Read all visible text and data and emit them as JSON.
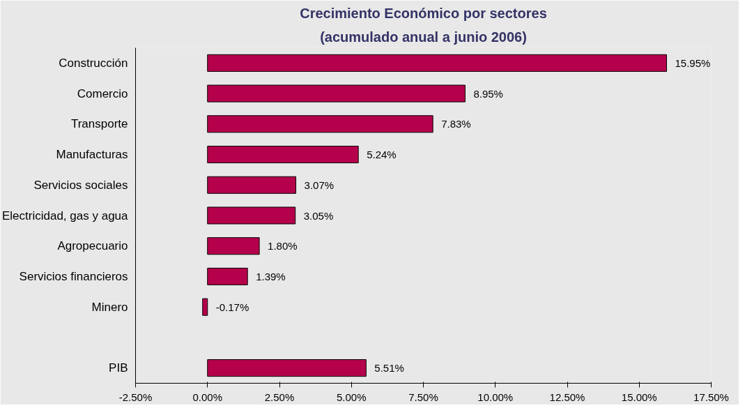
{
  "chart_data": {
    "type": "bar",
    "orientation": "horizontal",
    "title": "Crecimiento Económico por sectores",
    "subtitle": "(acumulado anual a junio 2006)",
    "categories": [
      "Construcción",
      "Comercio",
      "Transporte",
      "Manufacturas",
      "Servicios sociales",
      "Electricidad, gas y agua",
      "Agropecuario",
      "Servicios financieros",
      "Minero",
      null,
      "PIB"
    ],
    "values": [
      15.95,
      8.95,
      7.83,
      5.24,
      3.07,
      3.05,
      1.8,
      1.39,
      -0.17,
      null,
      5.51
    ],
    "value_labels": [
      "15.95%",
      "8.95%",
      "7.83%",
      "5.24%",
      "3.07%",
      "3.05%",
      "1.80%",
      "1.39%",
      "-0.17%",
      null,
      "5.51%"
    ],
    "color": "#b5004b",
    "xlim": [
      -2.5,
      17.5
    ],
    "xticks": [
      {
        "value": -2.5,
        "label": "-2.50%"
      },
      {
        "value": 0,
        "label": "0.00%"
      },
      {
        "value": 2.5,
        "label": "2.50%"
      },
      {
        "value": 5,
        "label": "5.00%"
      },
      {
        "value": 7.5,
        "label": "7.50%"
      },
      {
        "value": 10,
        "label": "10.00%"
      },
      {
        "value": 12.5,
        "label": "12.50%"
      },
      {
        "value": 15,
        "label": "15.00%"
      },
      {
        "value": 17.5,
        "label": "17.50%"
      }
    ],
    "grid": false
  }
}
